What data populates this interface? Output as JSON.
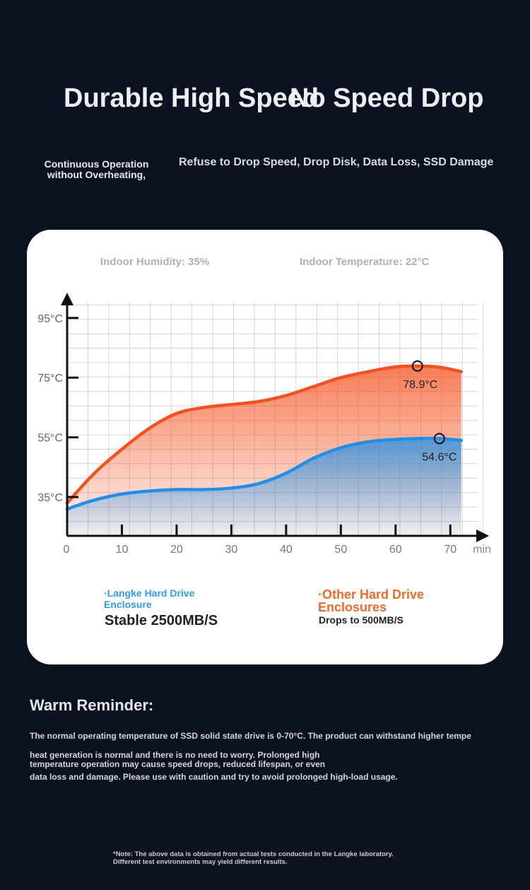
{
  "header": {
    "title_overlap": "Durable High Speed",
    "title_main": "No Speed Drop",
    "subtitle_left": "Continuous Operation without Overheating,",
    "subtitle_right": "Refuse to Drop Speed, Drop Disk, Data Loss, SSD Damage"
  },
  "conditions": {
    "humidity": "Indoor Humidity: 35%",
    "temperature": "Indoor Temperature: 22°C"
  },
  "chart_data": {
    "type": "area",
    "xlabel": "",
    "x_unit": "min",
    "ylabel": "",
    "x_ticks": [
      0,
      10,
      20,
      30,
      40,
      50,
      60,
      70
    ],
    "y_ticks": [
      "35°C",
      "55°C",
      "75°C",
      "95°C"
    ],
    "y_tick_values": [
      35,
      55,
      75,
      95
    ],
    "xlim": [
      0,
      75
    ],
    "ylim": [
      22,
      103
    ],
    "grid": true,
    "series": [
      {
        "name": "Other Hard Drive Enclosures",
        "color": "#f4511e",
        "x": [
          0,
          5,
          10,
          15,
          20,
          25,
          30,
          35,
          40,
          45,
          50,
          55,
          60,
          64,
          68,
          72
        ],
        "y": [
          33,
          43,
          51,
          58,
          63,
          65,
          66,
          67,
          69,
          72,
          75,
          77,
          78.6,
          78.9,
          78.5,
          77
        ],
        "peak": {
          "x": 64,
          "y": 78.9,
          "label": "78.9°C"
        }
      },
      {
        "name": "Langke Hard Drive Enclosure",
        "color": "#1e90ea",
        "x": [
          0,
          5,
          10,
          15,
          20,
          25,
          30,
          35,
          40,
          45,
          50,
          55,
          60,
          64,
          68,
          72
        ],
        "y": [
          31,
          34,
          36,
          37,
          37.5,
          37.5,
          38,
          39.5,
          43,
          48,
          51.5,
          53.5,
          54.3,
          54.6,
          54.6,
          54
        ]
      }
    ],
    "blue_marker": {
      "x": 68,
      "y": 54.6,
      "label": "54.6°C"
    }
  },
  "legend": {
    "blue_title": "·Langke Hard Drive Enclosure",
    "blue_value": "Stable 2500MB/S",
    "orange_title": "·Other Hard Drive Enclosures",
    "orange_value": "Drops to 500MB/S"
  },
  "reminder": {
    "title": "Warm Reminder:",
    "line1": "The normal operating temperature of SSD solid state drive is 0-70°C. The product can withstand higher tempe",
    "line2": "heat generation is normal and there is no need to worry. Prolonged high temperature operation may cause speed drops, reduced lifespan, or even",
    "line3": "data loss and damage. Please use with caution and try to avoid prolonged high-load usage."
  },
  "note": "*Note: The above data is obtained from actual tests conducted in the Langke laboratory. Different test environments may yield different results."
}
